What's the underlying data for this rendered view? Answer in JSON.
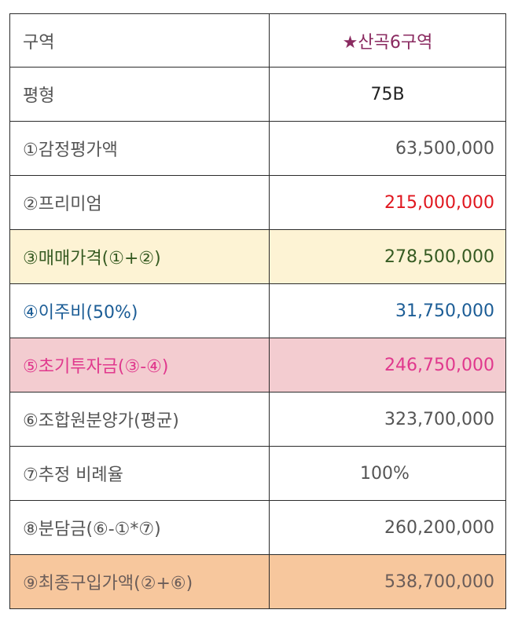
{
  "rows": [
    {
      "label": "구역",
      "value": "★산곡6구역"
    },
    {
      "label": "평형",
      "value": "75B"
    },
    {
      "label": "①감정평가액",
      "value": "63,500,000"
    },
    {
      "label": "②프리미엄",
      "value": "215,000,000"
    },
    {
      "label": "③매매가격(①+②)",
      "value": "278,500,000"
    },
    {
      "label": "④이주비(50%)",
      "value": "31,750,000"
    },
    {
      "label": "⑤초기투자금(③-④)",
      "value": "246,750,000"
    },
    {
      "label": "⑥조합원분양가(평균)",
      "value": "323,700,000"
    },
    {
      "label": "⑦추정 비례율",
      "value": "100%"
    },
    {
      "label": "⑧분담금(⑥-①*⑦)",
      "value": "260,200,000"
    },
    {
      "label": "⑨최종구입가액(②+⑥)",
      "value": "538,700,000"
    }
  ],
  "colors": {
    "highlight_yellow": "#fdf3d4",
    "highlight_pink": "#f3ccd0",
    "highlight_orange": "#f7c79d",
    "purple_text": "#8a2a60",
    "red_text": "#e0171f",
    "blue_text": "#1c5d96"
  }
}
